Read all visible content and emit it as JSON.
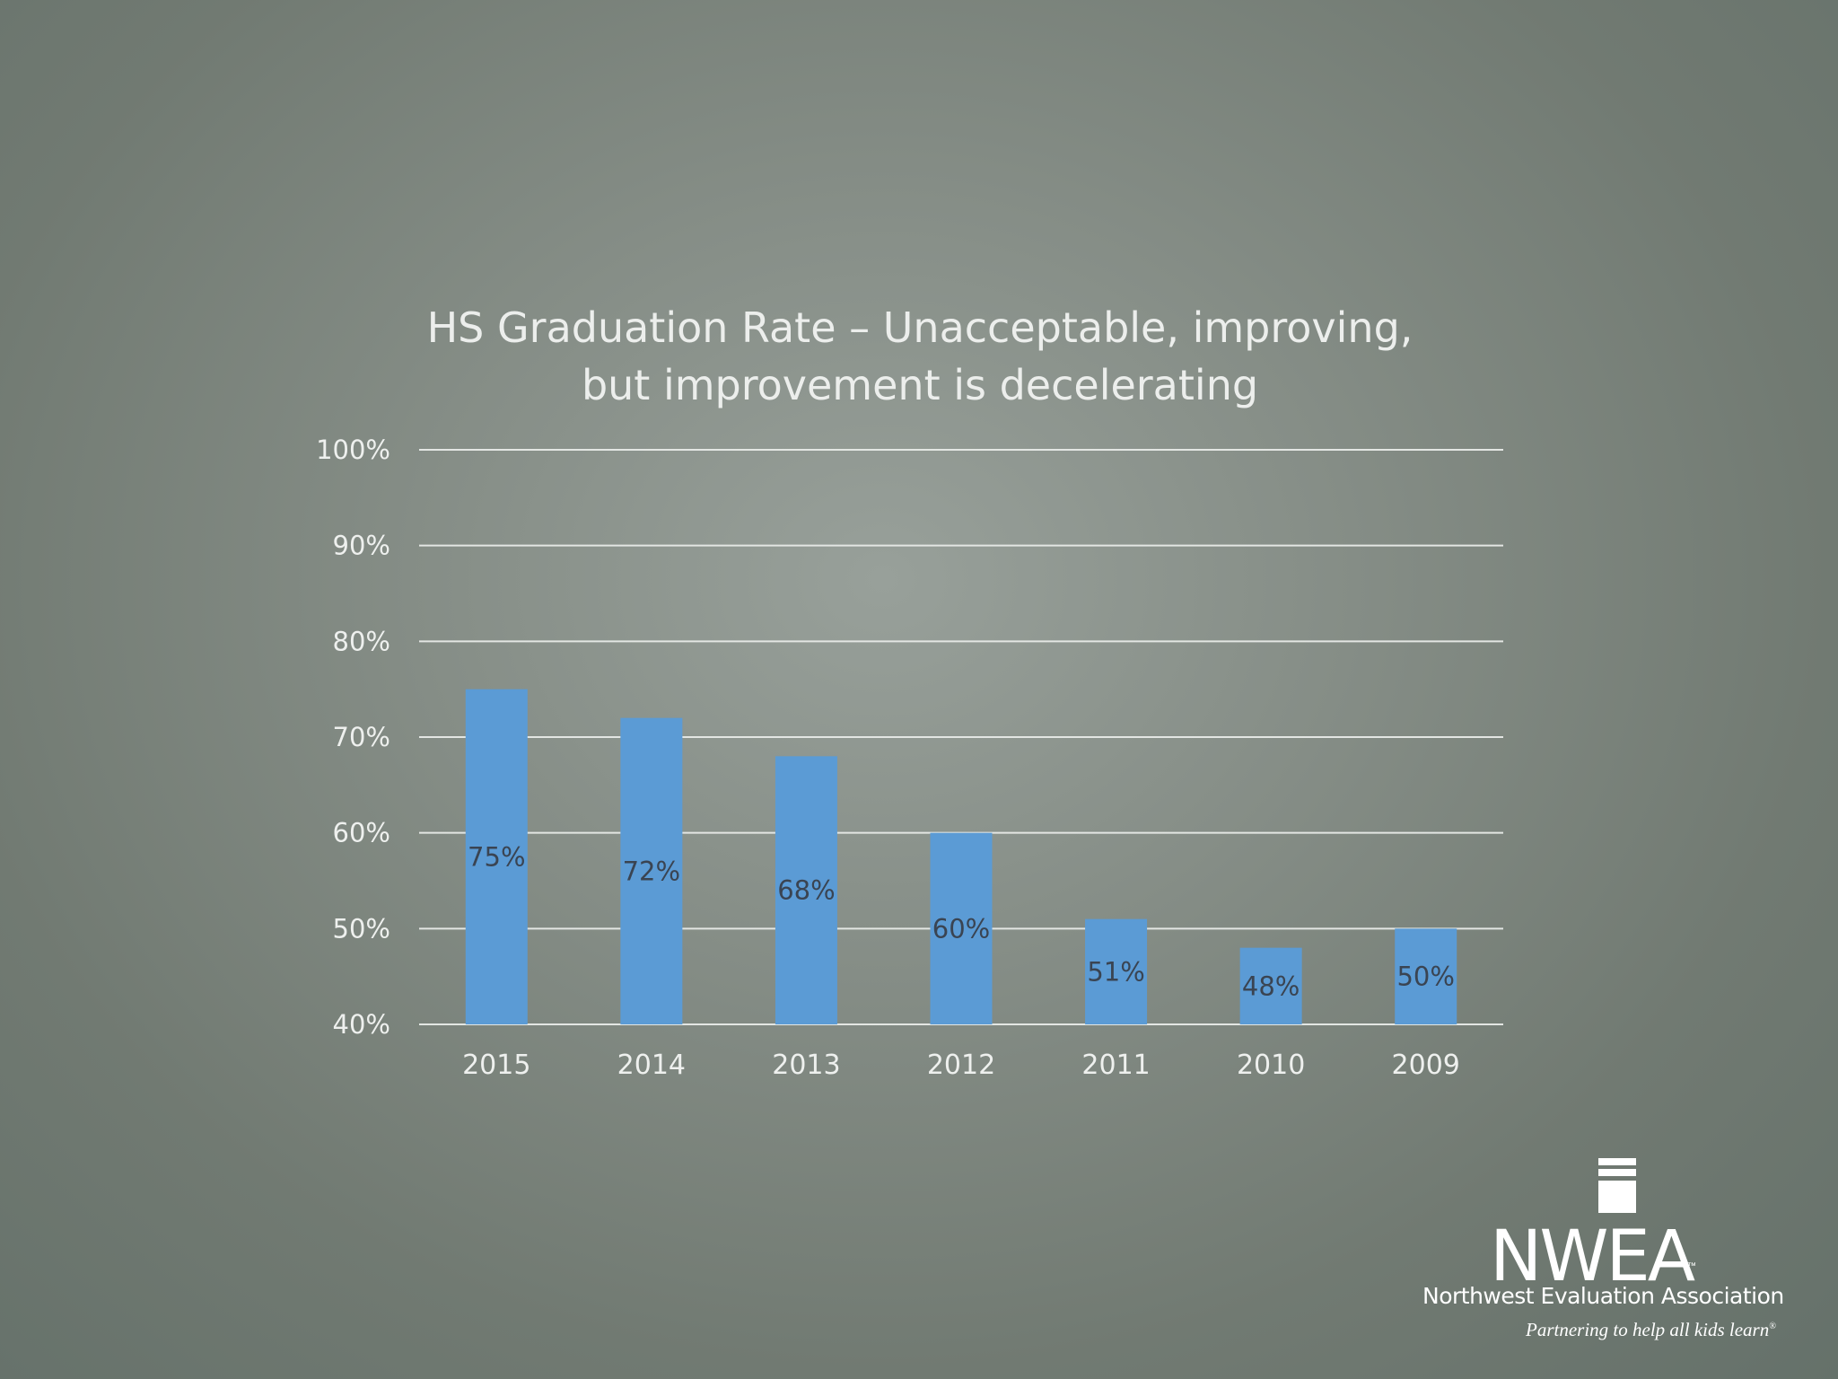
{
  "chart_data": {
    "type": "bar",
    "title_lines": [
      "HS Graduation Rate – Unacceptable, improving,",
      "but improvement is decelerating"
    ],
    "categories": [
      "2015",
      "2014",
      "2013",
      "2012",
      "2011",
      "2010",
      "2009"
    ],
    "values": [
      75,
      72,
      68,
      60,
      51,
      48,
      50
    ],
    "data_labels": [
      "75%",
      "72%",
      "68%",
      "60%",
      "51%",
      "48%",
      "50%"
    ],
    "y_ticks": [
      40,
      50,
      60,
      70,
      80,
      90,
      100
    ],
    "y_tick_labels": [
      "40%",
      "50%",
      "60%",
      "70%",
      "80%",
      "90%",
      "100%"
    ],
    "ylim": [
      40,
      100
    ],
    "grid": true,
    "legend": "none",
    "bar_color": "#5b9bd5"
  },
  "logo": {
    "wordmark": "NWEA",
    "trademark": "™",
    "organization": "Northwest Evaluation Association",
    "tagline": "Partnering to help all kids learn",
    "tagline_mark": "®"
  }
}
